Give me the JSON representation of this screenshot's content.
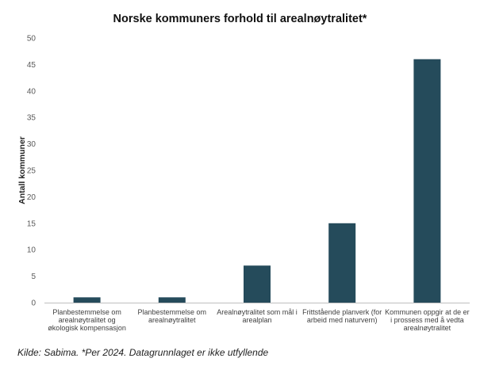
{
  "chart_data": {
    "type": "bar",
    "title": "Norske kommuners forhold til arealnøytralitet*",
    "xlabel": "",
    "ylabel": "Antall kommuner",
    "ylim": [
      0,
      50
    ],
    "yticks": [
      0,
      5,
      10,
      15,
      20,
      25,
      30,
      35,
      40,
      45,
      50
    ],
    "grid": false,
    "legend": "none",
    "categories": [
      [
        "Planbestemmelse om",
        "arealnøytralitet og",
        "økologisk kompensasjon"
      ],
      [
        "Planbestemmelse om",
        "arealnøytralitet"
      ],
      [
        "Arealnøytralitet som mål i",
        "arealplan"
      ],
      [
        "Frittstående planverk (for",
        "arbeid med naturvern)"
      ],
      [
        "Kommunen oppgir at de er",
        "i prossess med å vedta",
        "arealnøytralitet"
      ]
    ],
    "values": [
      1,
      1,
      7,
      15,
      46
    ],
    "bar_color": "#254B5B",
    "axis_color": "#bfbfbf"
  },
  "source": "Kilde: Sabima.  *Per 2024. Datagrunnlaget er ikke utfyllende"
}
